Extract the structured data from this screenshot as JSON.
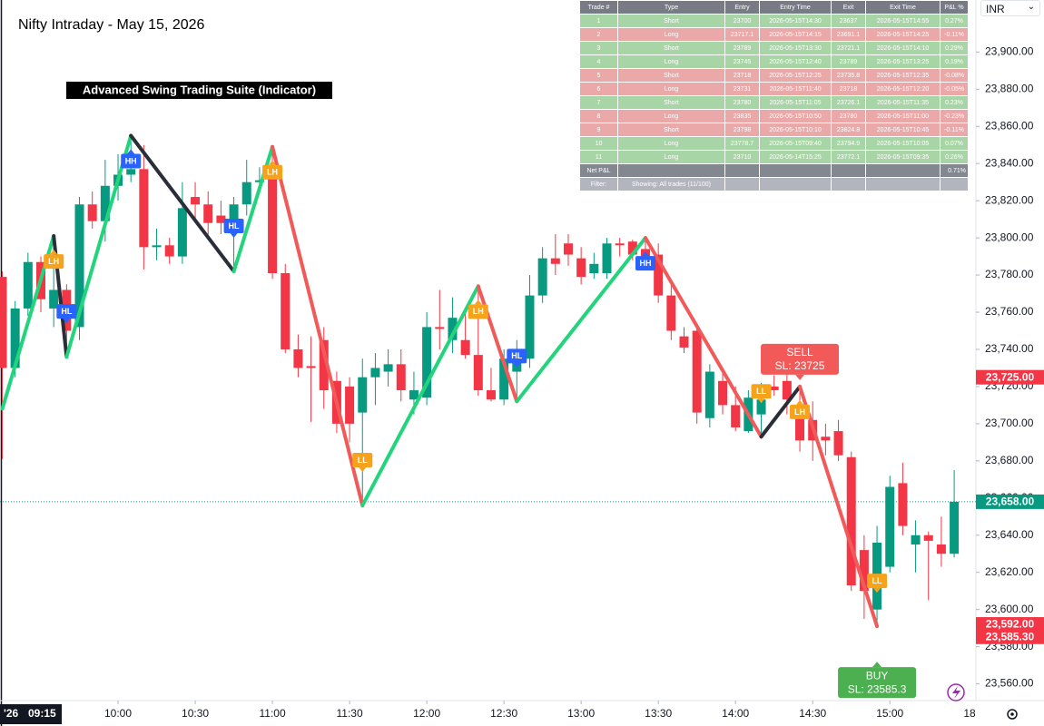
{
  "chart_data": {
    "type": "candlestick",
    "title": "Nifty Intraday - May 15, 2026",
    "indicator": "Advanced Swing Trading Suite (Indicator)",
    "currency": "INR",
    "x": [
      "09:15",
      "09:20",
      "09:25",
      "09:30",
      "09:35",
      "09:40",
      "09:45",
      "09:50",
      "09:55",
      "10:00",
      "10:05",
      "10:10",
      "10:15",
      "10:20",
      "10:25",
      "10:30",
      "10:35",
      "10:40",
      "10:45",
      "10:50",
      "10:55",
      "11:00",
      "11:05",
      "11:10",
      "11:15",
      "11:20",
      "11:25",
      "11:30",
      "11:35",
      "11:40",
      "11:45",
      "11:50",
      "11:55",
      "12:00",
      "12:05",
      "12:10",
      "12:15",
      "12:20",
      "12:25",
      "12:30",
      "12:35",
      "12:40",
      "12:45",
      "12:50",
      "12:55",
      "13:00",
      "13:05",
      "13:10",
      "13:15",
      "13:20",
      "13:25",
      "13:30",
      "13:35",
      "13:40",
      "13:45",
      "13:50",
      "13:55",
      "14:00",
      "14:05",
      "14:10",
      "14:15",
      "14:20",
      "14:25",
      "14:30",
      "14:35",
      "14:40",
      "14:45",
      "14:50",
      "14:55",
      "15:00",
      "15:05",
      "15:10",
      "15:15",
      "15:20",
      "15:25"
    ],
    "open": [
      23779,
      23730,
      23762,
      23787,
      23762,
      23772,
      23752,
      23818,
      23809,
      23828,
      23834,
      23837,
      23795,
      23796,
      23790,
      23822,
      23818,
      23812,
      23808,
      23818,
      23830,
      23833,
      23781,
      23740,
      23731,
      23745,
      23723,
      23720,
      23706,
      23725,
      23728,
      23732,
      23713,
      23714,
      23752,
      23745,
      23745,
      23737,
      23718,
      23713,
      23728,
      23735,
      23769,
      23789,
      23797,
      23789,
      23781,
      23781,
      23797,
      23798,
      23794,
      23791,
      23769,
      23747,
      23750,
      23703,
      23723,
      23710,
      23696,
      23705,
      23720,
      23723,
      23709,
      23702,
      23693,
      23696,
      23682,
      23632,
      23600,
      23623,
      23668,
      23635,
      23640,
      23635,
      23630
    ],
    "high": [
      23782,
      23766,
      23792,
      23790,
      23801,
      23775,
      23822,
      23825,
      23842,
      23845,
      23855,
      23850,
      23805,
      23800,
      23830,
      23830,
      23825,
      23820,
      23822,
      23842,
      23838,
      23849,
      23786,
      23748,
      23747,
      23752,
      23728,
      23725,
      23735,
      23738,
      23740,
      23740,
      23728,
      23760,
      23772,
      23768,
      23760,
      23774,
      23730,
      23740,
      23745,
      23780,
      23795,
      23802,
      23802,
      23795,
      23792,
      23800,
      23800,
      23799,
      23800,
      23797,
      23775,
      23752,
      23752,
      23732,
      23730,
      23720,
      23718,
      23722,
      23726,
      23728,
      23720,
      23712,
      23700,
      23702,
      23685,
      23640,
      23645,
      23672,
      23679,
      23648,
      23642,
      23650,
      23675
    ],
    "low": [
      23681,
      23725,
      23758,
      23760,
      23752,
      23736,
      23745,
      23805,
      23798,
      23820,
      23830,
      23783,
      23788,
      23786,
      23786,
      23808,
      23800,
      23802,
      23782,
      23812,
      23825,
      23778,
      23738,
      23725,
      23701,
      23708,
      23695,
      23690,
      23656,
      23710,
      23720,
      23712,
      23705,
      23710,
      23740,
      23738,
      23735,
      23715,
      23712,
      23710,
      23712,
      23730,
      23765,
      23780,
      23785,
      23775,
      23778,
      23778,
      23790,
      23788,
      23786,
      23765,
      23745,
      23738,
      23700,
      23698,
      23705,
      23696,
      23695,
      23693,
      23715,
      23705,
      23685,
      23680,
      23683,
      23680,
      23610,
      23595,
      23591,
      23620,
      23640,
      23620,
      23605,
      23623,
      23628
    ],
    "close": [
      23730,
      23762,
      23787,
      23767,
      23772,
      23750,
      23818,
      23809,
      23828,
      23834,
      23837,
      23795,
      23796,
      23790,
      23816,
      23818,
      23808,
      23808,
      23818,
      23830,
      23831,
      23781,
      23740,
      23730,
      23730,
      23718,
      23700,
      23700,
      23725,
      23730,
      23732,
      23718,
      23718,
      23752,
      23751,
      23757,
      23737,
      23718,
      23713,
      23735,
      23736,
      23769,
      23789,
      23786,
      23791,
      23779,
      23786,
      23797,
      23796,
      23791,
      23789,
      23769,
      23750,
      23741,
      23706,
      23728,
      23710,
      23698,
      23714,
      23713,
      23718,
      23713,
      23691,
      23691,
      23691,
      23683,
      23613,
      23610,
      23636,
      23666,
      23645,
      23640,
      23637,
      23630,
      23658
    ],
    "up_color": "#089981",
    "down_color": "#f23645",
    "ylim": [
      23551,
      23928
    ],
    "yticks": [
      {
        "value": 23560,
        "label": "23,560.00"
      },
      {
        "value": 23580,
        "label": "23,580.00"
      },
      {
        "value": 23600,
        "label": "23,600.00"
      },
      {
        "value": 23620,
        "label": "23,620.00"
      },
      {
        "value": 23640,
        "label": "23,640.00"
      },
      {
        "value": 23660,
        "label": "23,660.00"
      },
      {
        "value": 23680,
        "label": "23,680.00"
      },
      {
        "value": 23700,
        "label": "23,700.00"
      },
      {
        "value": 23720,
        "label": "23,720.00"
      },
      {
        "value": 23740,
        "label": "23,740.00"
      },
      {
        "value": 23760,
        "label": "23,760.00"
      },
      {
        "value": 23780,
        "label": "23,780.00"
      },
      {
        "value": 23800,
        "label": "23,800.00"
      },
      {
        "value": 23820,
        "label": "23,820.00"
      },
      {
        "value": 23840,
        "label": "23,840.00"
      },
      {
        "value": 23860,
        "label": "23,860.00"
      },
      {
        "value": 23880,
        "label": "23,880.00"
      },
      {
        "value": 23900,
        "label": "23,900.00"
      }
    ],
    "xticks": [
      "10:00",
      "10:30",
      "11:00",
      "11:30",
      "12:00",
      "12:30",
      "13:00",
      "13:30",
      "14:00",
      "14:30",
      "15:00"
    ],
    "x_start_prefix": "'26",
    "x_end_label": "18",
    "zigzag": [
      {
        "x": "09:15",
        "value": 23708
      },
      {
        "x": "09:35",
        "value": 23801,
        "label": "LH",
        "label_color": "#f7a21b"
      },
      {
        "x": "09:40",
        "value": 23736,
        "label": "HL",
        "label_color": "#2962ff"
      },
      {
        "x": "10:05",
        "value": 23855,
        "label": "HH",
        "label_color": "#2962ff"
      },
      {
        "x": "10:45",
        "value": 23782,
        "label": "HL",
        "label_color": "#2962ff"
      },
      {
        "x": "11:00",
        "value": 23849,
        "label": "LH",
        "label_color": "#f7a21b"
      },
      {
        "x": "11:35",
        "value": 23656,
        "label": "LL",
        "label_color": "#f7a21b"
      },
      {
        "x": "12:20",
        "value": 23774,
        "label": "LH",
        "label_color": "#f7a21b"
      },
      {
        "x": "12:35",
        "value": 23712,
        "label": "HL",
        "label_color": "#2962ff"
      },
      {
        "x": "13:25",
        "value": 23800,
        "label": "HH",
        "label_color": "#2962ff"
      },
      {
        "x": "14:10",
        "value": 23693,
        "label": "LL",
        "label_color": "#f7a21b"
      },
      {
        "x": "14:25",
        "value": 23720,
        "label": "LH",
        "label_color": "#f7a21b"
      },
      {
        "x": "14:55",
        "value": 23591,
        "label": "LL",
        "label_color": "#f7a21b"
      }
    ],
    "zigzag_colors": [
      "#22d47b",
      "#2a2e39",
      "#22d47b",
      "#2a2e39",
      "#22d47b",
      "#f25a5a",
      "#22d47b",
      "#f25a5a",
      "#22d47b",
      "#f25a5a",
      "#2a2e39",
      "#f25a5a"
    ],
    "signals": [
      {
        "type": "SELL",
        "text": "SL: 23725",
        "x": "14:25",
        "color": "#f25a5a"
      },
      {
        "type": "BUY",
        "text": "SL: 23585.3",
        "x": "14:55",
        "color": "#4caf50"
      }
    ],
    "price_labels": [
      {
        "value": 23725,
        "label": "23,725.00",
        "color": "#f23645"
      },
      {
        "value": 23658,
        "label": "23,658.00",
        "color": "#089981",
        "line": true
      },
      {
        "value": 23592,
        "label": "23,592.00",
        "color": "#f23645"
      },
      {
        "value": 23585.3,
        "label": "23,585.30",
        "color": "#f23645"
      }
    ]
  },
  "trade_table": {
    "headers": [
      "Trade #",
      "Type",
      "Entry",
      "Entry Time",
      "Exit",
      "Exit Time",
      "P&L %"
    ],
    "rows": [
      [
        "1",
        "Short",
        "23700",
        "2026-05-15T14:30",
        "23637",
        "2026-05-15T14:55",
        "0.27%"
      ],
      [
        "2",
        "Long",
        "23717.1",
        "2026-05-15T14:15",
        "23691.1",
        "2026-05-15T14:25",
        "-0.11%"
      ],
      [
        "3",
        "Short",
        "23789",
        "2026-05-15T13:30",
        "23721.1",
        "2026-05-15T14:10",
        "0.29%"
      ],
      [
        "4",
        "Long",
        "23745",
        "2026-05-15T12:40",
        "23789",
        "2026-05-15T13:25",
        "0.19%"
      ],
      [
        "5",
        "Short",
        "23718",
        "2026-05-15T12:25",
        "23735.8",
        "2026-05-15T12:35",
        "-0.08%"
      ],
      [
        "6",
        "Long",
        "23731",
        "2026-05-15T11:40",
        "23718",
        "2026-05-15T12:20",
        "-0.05%"
      ],
      [
        "7",
        "Short",
        "23780",
        "2026-05-15T11:05",
        "23726.1",
        "2026-05-15T11:35",
        "0.23%"
      ],
      [
        "8",
        "Long",
        "23835",
        "2026-05-15T10:50",
        "23780",
        "2026-05-15T11:00",
        "-0.23%"
      ],
      [
        "9",
        "Short",
        "23798",
        "2026-05-15T10:10",
        "23824.8",
        "2026-05-15T10:45",
        "-0.11%"
      ],
      [
        "10",
        "Long",
        "23778.7",
        "2026-05-15T09:40",
        "23794.9",
        "2026-05-15T10:05",
        "0.07%"
      ],
      [
        "11",
        "Long",
        "23710",
        "2026-05-14T15:25",
        "23772.1",
        "2026-05-15T09:35",
        "0.26%"
      ]
    ],
    "net": {
      "label": "Net P&L",
      "value": "0.71%"
    },
    "filter": {
      "label": "Filter:",
      "value": "Showing: All trades (11/100)"
    }
  }
}
